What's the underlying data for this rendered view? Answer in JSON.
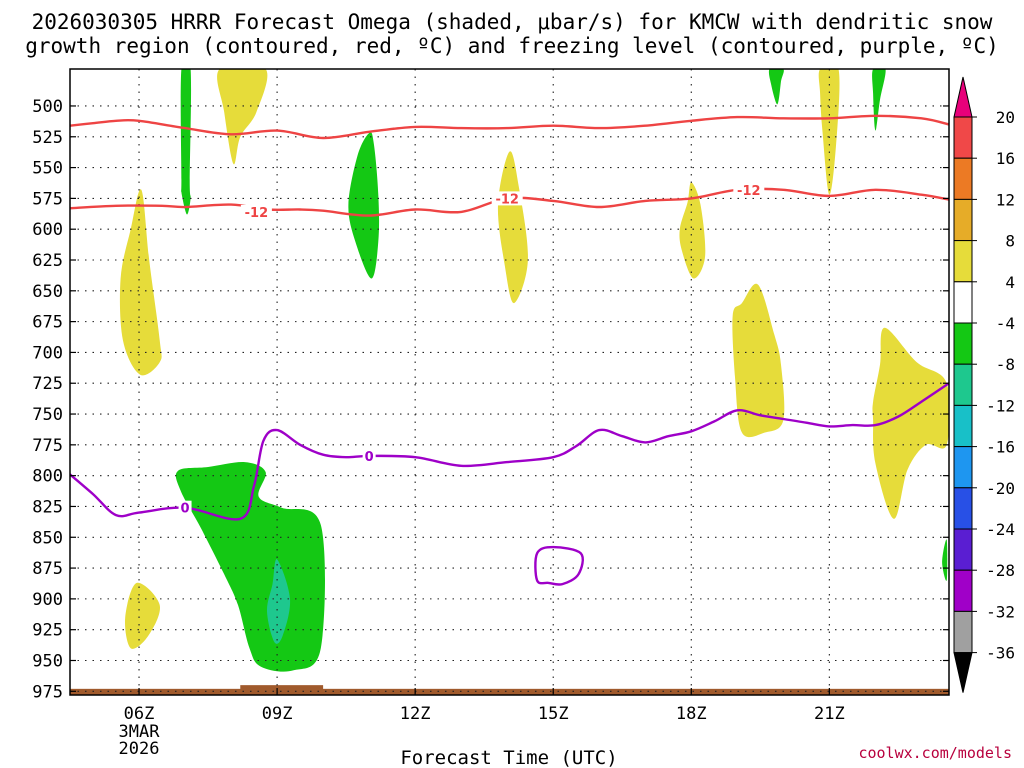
{
  "chart_data": {
    "type": "heatmap",
    "title_line1": "2026030305 HRRR Forecast Omega (shaded, μbar/s) for KMCW with dendritic snow",
    "title_line2": "growth region (contoured, red, ºC) and freezing level (contoured, purple, ºC)",
    "xlabel": "Forecast Time (UTC)",
    "credit": "coolwx.com/models",
    "x_range_hours": [
      4.5,
      23.6
    ],
    "y_range_mb": [
      470,
      978
    ],
    "x_ticks": [
      {
        "hour": 6,
        "label": "06Z",
        "sub1": "3MAR",
        "sub2": "2026"
      },
      {
        "hour": 9,
        "label": "09Z"
      },
      {
        "hour": 12,
        "label": "12Z"
      },
      {
        "hour": 15,
        "label": "15Z"
      },
      {
        "hour": 18,
        "label": "18Z"
      },
      {
        "hour": 21,
        "label": "21Z"
      }
    ],
    "y_ticks": [
      {
        "mb": 500,
        "label": "500"
      },
      {
        "mb": 525,
        "label": "525"
      },
      {
        "mb": 550,
        "label": "550"
      },
      {
        "mb": 575,
        "label": "575"
      },
      {
        "mb": 600,
        "label": "600"
      },
      {
        "mb": 625,
        "label": "625"
      },
      {
        "mb": 650,
        "label": "650"
      },
      {
        "mb": 675,
        "label": "675"
      },
      {
        "mb": 700,
        "label": "700"
      },
      {
        "mb": 725,
        "label": "725"
      },
      {
        "mb": 750,
        "label": "750"
      },
      {
        "mb": 775,
        "label": "775"
      },
      {
        "mb": 800,
        "label": "800"
      },
      {
        "mb": 825,
        "label": "825"
      },
      {
        "mb": 850,
        "label": "850"
      },
      {
        "mb": 875,
        "label": "875"
      },
      {
        "mb": 900,
        "label": "900"
      },
      {
        "mb": 925,
        "label": "925"
      },
      {
        "mb": 950,
        "label": "950"
      },
      {
        "mb": 975,
        "label": "975"
      }
    ],
    "colorbar": {
      "levels": [
        "20",
        "16",
        "12",
        "8",
        "4",
        "-4",
        "-8",
        "-12",
        "-16",
        "-20",
        "-24",
        "-28",
        "-32",
        "-36"
      ],
      "colors": [
        "#e8007a",
        "#f04848",
        "#ec7a24",
        "#e6ac28",
        "#e6dc3a",
        "#ffffff",
        "#14c814",
        "#1ec88e",
        "#18c0c8",
        "#1e96f0",
        "#2850e6",
        "#5a1ed2",
        "#a000c8",
        "#a0a0a0",
        "#000000"
      ]
    },
    "shaded_regions": [
      {
        "name": "shade-yellow-0600-upper",
        "value": 4,
        "color": "#e6dc3a",
        "points": [
          [
            6.05,
            568
          ],
          [
            6.22,
            625
          ],
          [
            6.45,
            690
          ],
          [
            6.45,
            708
          ],
          [
            6.02,
            718
          ],
          [
            5.65,
            690
          ],
          [
            5.6,
            640
          ],
          [
            5.82,
            600
          ]
        ]
      },
      {
        "name": "shade-yellow-0600-lower",
        "value": 4,
        "color": "#e6dc3a",
        "points": [
          [
            5.95,
            887
          ],
          [
            6.45,
            905
          ],
          [
            6.2,
            930
          ],
          [
            5.82,
            940
          ],
          [
            5.7,
            915
          ]
        ]
      },
      {
        "name": "shade-green-0700",
        "value": -4,
        "color": "#14c814",
        "points": [
          [
            6.92,
            470
          ],
          [
            7.12,
            470
          ],
          [
            7.1,
            560
          ],
          [
            7.12,
            575
          ],
          [
            7.04,
            588
          ],
          [
            6.92,
            570
          ],
          [
            6.92,
            560
          ]
        ]
      },
      {
        "name": "shade-yellow-0800",
        "value": 4,
        "color": "#e6dc3a",
        "points": [
          [
            7.75,
            470
          ],
          [
            8.75,
            470
          ],
          [
            8.55,
            505
          ],
          [
            8.2,
            525
          ],
          [
            8.05,
            547
          ],
          [
            7.85,
            505
          ]
        ]
      },
      {
        "name": "shade-green-1100",
        "value": -4,
        "color": "#14c814",
        "points": [
          [
            11.0,
            522
          ],
          [
            11.1,
            530
          ],
          [
            11.2,
            572
          ],
          [
            11.2,
            610
          ],
          [
            11.05,
            640
          ],
          [
            10.7,
            610
          ],
          [
            10.55,
            580
          ],
          [
            10.75,
            540
          ]
        ]
      },
      {
        "name": "shade-yellow-1400",
        "value": 4,
        "color": "#e6dc3a",
        "points": [
          [
            14.05,
            537
          ],
          [
            14.25,
            565
          ],
          [
            14.45,
            625
          ],
          [
            14.15,
            660
          ],
          [
            13.95,
            630
          ],
          [
            13.8,
            580
          ]
        ]
      },
      {
        "name": "shade-yellow-1800",
        "value": 4,
        "color": "#e6dc3a",
        "points": [
          [
            18.0,
            562
          ],
          [
            18.2,
            580
          ],
          [
            18.3,
            622
          ],
          [
            18.05,
            640
          ],
          [
            17.8,
            618
          ],
          [
            17.75,
            600
          ],
          [
            17.92,
            578
          ]
        ]
      },
      {
        "name": "shade-green-1945",
        "value": -4,
        "color": "#14c814",
        "points": [
          [
            19.7,
            470
          ],
          [
            20.0,
            470
          ],
          [
            19.95,
            480
          ],
          [
            19.9,
            495
          ],
          [
            19.85,
            498
          ],
          [
            19.75,
            485
          ]
        ]
      },
      {
        "name": "shade-yellow-2100",
        "value": 4,
        "color": "#e6dc3a",
        "points": [
          [
            20.8,
            470
          ],
          [
            21.2,
            470
          ],
          [
            21.15,
            530
          ],
          [
            21.0,
            572
          ],
          [
            20.85,
            520
          ],
          [
            20.8,
            490
          ]
        ]
      },
      {
        "name": "shade-green-2200",
        "value": -4,
        "color": "#14c814",
        "points": [
          [
            21.95,
            470
          ],
          [
            22.22,
            470
          ],
          [
            22.1,
            495
          ],
          [
            22.0,
            520
          ],
          [
            21.95,
            490
          ]
        ]
      },
      {
        "name": "shade-yellow-1900",
        "value": 4,
        "color": "#e6dc3a",
        "points": [
          [
            19.1,
            660
          ],
          [
            19.45,
            645
          ],
          [
            19.8,
            685
          ],
          [
            19.95,
            710
          ],
          [
            20.0,
            755
          ],
          [
            19.6,
            765
          ],
          [
            19.1,
            765
          ],
          [
            18.95,
            720
          ],
          [
            18.9,
            670
          ]
        ]
      },
      {
        "name": "shade-yellow-2230",
        "value": 4,
        "color": "#e6dc3a",
        "points": [
          [
            22.2,
            680
          ],
          [
            22.9,
            708
          ],
          [
            23.55,
            725
          ],
          [
            23.55,
            775
          ],
          [
            23.1,
            775
          ],
          [
            22.7,
            795
          ],
          [
            22.4,
            835
          ],
          [
            22.0,
            790
          ],
          [
            21.95,
            755
          ],
          [
            21.95,
            740
          ],
          [
            22.1,
            710
          ]
        ]
      },
      {
        "name": "shade-green-0800-lowlevel",
        "value": -4,
        "color": "#14c814",
        "points": [
          [
            6.85,
            796
          ],
          [
            7.5,
            793
          ],
          [
            8.3,
            789
          ],
          [
            8.75,
            797
          ],
          [
            8.6,
            817
          ],
          [
            9.1,
            826
          ],
          [
            9.95,
            840
          ],
          [
            9.95,
            940
          ],
          [
            9.35,
            958
          ],
          [
            8.65,
            955
          ],
          [
            8.4,
            940
          ],
          [
            8.15,
            905
          ],
          [
            7.85,
            880
          ],
          [
            7.35,
            843
          ],
          [
            6.9,
            812
          ]
        ]
      },
      {
        "name": "shade-teal-0900-core",
        "value": -8,
        "color": "#1ec88e",
        "points": [
          [
            9.0,
            868
          ],
          [
            9.28,
            900
          ],
          [
            9.12,
            930
          ],
          [
            8.94,
            935
          ],
          [
            8.78,
            910
          ],
          [
            8.9,
            888
          ]
        ]
      },
      {
        "name": "shade-green-2345-edge",
        "value": -4,
        "color": "#14c814",
        "points": [
          [
            23.55,
            852
          ],
          [
            23.55,
            885
          ],
          [
            23.45,
            870
          ]
        ]
      }
    ],
    "temperature_contours": [
      {
        "name": "dgz-red-upper",
        "level": "-12",
        "color": "#ee4444",
        "points": [
          [
            4.5,
            516
          ],
          [
            5.0,
            514
          ],
          [
            5.5,
            512
          ],
          [
            6.0,
            512
          ],
          [
            7.0,
            518
          ],
          [
            8.0,
            523
          ],
          [
            9.0,
            520
          ],
          [
            10.0,
            526
          ],
          [
            11.0,
            521
          ],
          [
            12.0,
            517
          ],
          [
            13.0,
            518
          ],
          [
            14.0,
            518
          ],
          [
            15.0,
            516
          ],
          [
            16.0,
            518
          ],
          [
            17.0,
            516
          ],
          [
            18.0,
            512
          ],
          [
            19.0,
            509
          ],
          [
            20.0,
            510
          ],
          [
            21.0,
            510
          ],
          [
            22.0,
            508
          ],
          [
            23.0,
            510
          ],
          [
            23.6,
            515
          ]
        ]
      },
      {
        "name": "dgz-red-lower",
        "level": "-12",
        "color": "#ee4444",
        "points": [
          [
            4.5,
            583
          ],
          [
            5.5,
            581
          ],
          [
            6.5,
            581
          ],
          [
            7.0,
            582
          ],
          [
            8.0,
            580
          ],
          [
            8.8,
            584
          ],
          [
            9.5,
            584
          ],
          [
            10.0,
            585
          ],
          [
            11.0,
            589
          ],
          [
            12.0,
            584
          ],
          [
            13.0,
            586
          ],
          [
            14.0,
            575
          ],
          [
            15.0,
            577
          ],
          [
            16.0,
            582
          ],
          [
            17.0,
            577
          ],
          [
            18.0,
            575
          ],
          [
            19.0,
            568
          ],
          [
            20.0,
            568
          ],
          [
            21.0,
            573
          ],
          [
            22.0,
            568
          ],
          [
            23.0,
            572
          ],
          [
            23.6,
            576
          ]
        ]
      },
      {
        "name": "freezing-level-purple",
        "level": "0",
        "color": "#9e00c8",
        "points": [
          [
            4.5,
            799
          ],
          [
            5.0,
            815
          ],
          [
            5.5,
            832
          ],
          [
            6.0,
            830
          ],
          [
            7.0,
            826
          ],
          [
            8.2,
            835
          ],
          [
            8.5,
            808
          ],
          [
            8.7,
            772
          ],
          [
            9.0,
            763
          ],
          [
            9.5,
            775
          ],
          [
            10.0,
            783
          ],
          [
            10.5,
            785
          ],
          [
            11.0,
            784
          ],
          [
            12.0,
            785
          ],
          [
            13.0,
            792
          ],
          [
            14.0,
            789
          ],
          [
            15.0,
            785
          ],
          [
            15.5,
            776
          ],
          [
            16.0,
            763
          ],
          [
            16.5,
            768
          ],
          [
            17.0,
            773
          ],
          [
            17.5,
            768
          ],
          [
            18.0,
            764
          ],
          [
            18.5,
            756
          ],
          [
            19.0,
            747
          ],
          [
            19.5,
            751
          ],
          [
            20.0,
            754
          ],
          [
            20.5,
            757
          ],
          [
            21.0,
            760
          ],
          [
            21.5,
            759
          ],
          [
            22.0,
            759
          ],
          [
            22.5,
            752
          ],
          [
            23.0,
            740
          ],
          [
            23.6,
            725
          ]
        ]
      },
      {
        "name": "freezing-level-purple-loop",
        "level": "0",
        "color": "#9e00c8",
        "points": [
          [
            14.65,
            863
          ],
          [
            15.0,
            858
          ],
          [
            15.6,
            863
          ],
          [
            15.55,
            880
          ],
          [
            15.2,
            888
          ],
          [
            14.9,
            887
          ],
          [
            14.65,
            885
          ],
          [
            14.65,
            863
          ]
        ]
      }
    ],
    "contour_labels": [
      {
        "name": "contour-label-m12-a",
        "text": "-12",
        "hour": 8.55,
        "mb": 586,
        "color": "#ee4444"
      },
      {
        "name": "contour-label-m12-b",
        "text": "-12",
        "hour": 14.0,
        "mb": 575,
        "color": "#ee4444"
      },
      {
        "name": "contour-label-m12-c",
        "text": "-12",
        "hour": 19.25,
        "mb": 568,
        "color": "#ee4444"
      },
      {
        "name": "contour-label-0-a",
        "text": "0",
        "hour": 7.0,
        "mb": 826,
        "color": "#9e00c8"
      },
      {
        "name": "contour-label-0-b",
        "text": "0",
        "hour": 11.0,
        "mb": 784,
        "color": "#9e00c8"
      }
    ],
    "ground_band": {
      "color": "#a05a2c",
      "top_mb": 973,
      "bump_hours": [
        8.2,
        10.0
      ],
      "bump_top_mb": 970
    }
  }
}
